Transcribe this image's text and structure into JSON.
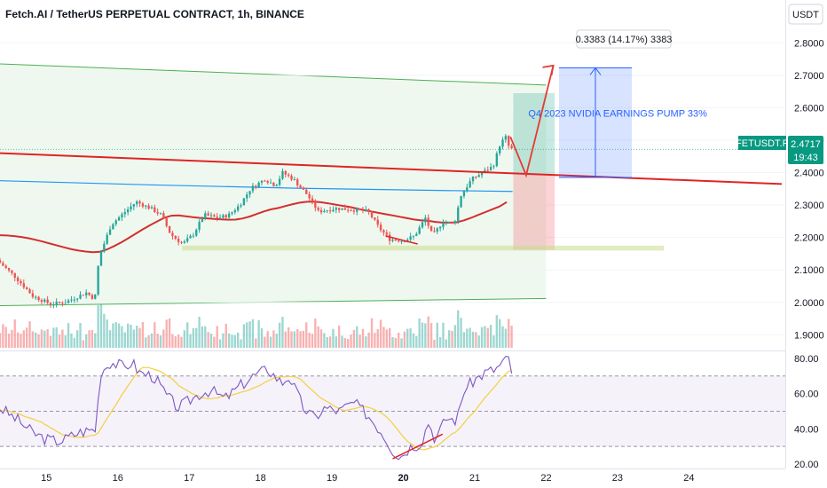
{
  "header": {
    "title": "Fetch.AI / TetherUS PERPETUAL CONTRACT, 1h, BINANCE",
    "currency_badge": "USDT"
  },
  "chart_data": {
    "type": "candlestick",
    "symbol_tag": "FETUSDT.P",
    "last_price": "2.4717",
    "countdown": "19:43",
    "price_axis": {
      "ylim": [
        1.86,
        2.85
      ],
      "ticks": [
        "2.8000",
        "2.7000",
        "2.6000",
        "2.5000",
        "2.4000",
        "2.3000",
        "2.2000",
        "2.1000",
        "2.0000",
        "1.9000"
      ],
      "tick_values": [
        2.8,
        2.7,
        2.6,
        2.5,
        2.4,
        2.3,
        2.2,
        2.1,
        2.0,
        1.9
      ]
    },
    "rsi_axis": {
      "ylim": [
        18,
        83
      ],
      "ticks": [
        "80.00",
        "60.00",
        "40.00",
        "20.00"
      ],
      "tick_values": [
        80,
        60,
        40,
        20
      ],
      "bands": [
        70,
        50,
        30
      ]
    },
    "x_axis": {
      "ticks": [
        "15",
        "16",
        "17",
        "18",
        "19",
        "20",
        "21",
        "22",
        "23",
        "24"
      ],
      "tick_days": [
        15,
        16,
        17,
        18,
        19,
        20,
        21,
        22,
        23,
        24
      ],
      "bold_tick": "20",
      "xlim": [
        14.35,
        25.35
      ]
    },
    "annotations": {
      "measure_label": "0.3383 (14.17%) 3383",
      "measure_from": 2.385,
      "measure_to": 2.723,
      "note": "Q4 2023 NVIDIA EARNINGS PUMP  33%",
      "support_level": 2.165,
      "support_top": 2.175,
      "support_bottom": 2.16,
      "trendline_start": {
        "day": 14.35,
        "price": 2.46
      },
      "trendline_end": {
        "day": 25.3,
        "price": 2.365
      },
      "projection_path": [
        {
          "day": 21.5,
          "price": 2.51
        },
        {
          "day": 21.72,
          "price": 2.392
        },
        {
          "day": 22.1,
          "price": 2.73
        }
      ],
      "position_entry": 2.395,
      "position_target": 2.645,
      "position_stop": 2.162,
      "colors": {
        "up": "#26a69a",
        "down": "#ef5350",
        "trend": "#e02424",
        "channel": "#4caf50",
        "mid_blue": "#2196f3",
        "rsi": "#7e57c2",
        "rsi_ma": "#f4d03f",
        "projection": "#e53935",
        "measure": "#2962ff",
        "tag": "#089981"
      }
    },
    "ohlc": [],
    "volume": [],
    "rsi": []
  }
}
